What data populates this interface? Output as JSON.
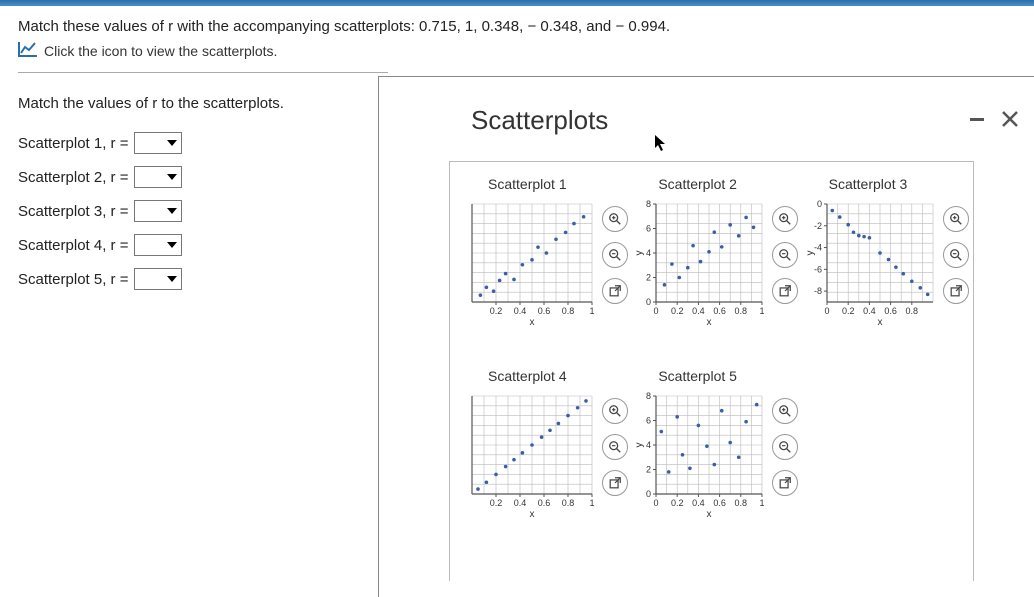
{
  "question": {
    "main_text": "Match these values of r with the accompanying scatterplots: 0.715, 1, 0.348, − 0.348, and − 0.994.",
    "link_text": "Click the icon to view the scatterplots.",
    "instruction": "Match the values of r to the scatterplots."
  },
  "matches": [
    {
      "label": "Scatterplot 1, r ="
    },
    {
      "label": "Scatterplot 2, r ="
    },
    {
      "label": "Scatterplot 3, r ="
    },
    {
      "label": "Scatterplot 4, r ="
    },
    {
      "label": "Scatterplot 5, r ="
    }
  ],
  "popup": {
    "title": "Scatterplots"
  },
  "chart_style": {
    "grid_color": "#b9b9b9",
    "axis_color": "#555555",
    "point_color": "#3b5ea8",
    "tick_font": 9,
    "axis_label_font": 10,
    "background": "#ffffff"
  },
  "plots": [
    {
      "title": "Scatterplot 1",
      "xlabel": "x",
      "ylabel": "",
      "xlim": [
        0,
        1
      ],
      "ylim": [
        0,
        10
      ],
      "xticks": [
        0.2,
        0.4,
        0.6,
        0.8,
        1
      ],
      "xtick_labels": [
        "0.2",
        "0.4",
        "0.6",
        "0.8",
        "1"
      ],
      "yticks": [],
      "ytick_labels": [],
      "points": [
        [
          0.07,
          0.7
        ],
        [
          0.12,
          1.5
        ],
        [
          0.18,
          1.1
        ],
        [
          0.23,
          2.2
        ],
        [
          0.28,
          2.9
        ],
        [
          0.35,
          2.3
        ],
        [
          0.42,
          3.8
        ],
        [
          0.5,
          4.3
        ],
        [
          0.55,
          5.6
        ],
        [
          0.62,
          5.0
        ],
        [
          0.7,
          6.4
        ],
        [
          0.78,
          7.1
        ],
        [
          0.85,
          8.0
        ],
        [
          0.93,
          8.7
        ]
      ]
    },
    {
      "title": "Scatterplot 2",
      "xlabel": "x",
      "ylabel": "y",
      "xlim": [
        0,
        1
      ],
      "ylim": [
        0,
        8
      ],
      "xticks": [
        0,
        0.2,
        0.4,
        0.6,
        0.8,
        1
      ],
      "xtick_labels": [
        "0",
        "0.2",
        "0.4",
        "0.6",
        "0.8",
        "1"
      ],
      "yticks": [
        0,
        2,
        4,
        6,
        8
      ],
      "ytick_labels": [
        "0",
        "2",
        "4",
        "6",
        "8"
      ],
      "points": [
        [
          0.08,
          1.4
        ],
        [
          0.15,
          3.1
        ],
        [
          0.22,
          2.0
        ],
        [
          0.3,
          2.8
        ],
        [
          0.35,
          4.6
        ],
        [
          0.42,
          3.3
        ],
        [
          0.5,
          4.1
        ],
        [
          0.55,
          5.7
        ],
        [
          0.62,
          4.5
        ],
        [
          0.7,
          6.3
        ],
        [
          0.78,
          5.4
        ],
        [
          0.85,
          6.9
        ],
        [
          0.92,
          6.1
        ]
      ]
    },
    {
      "title": "Scatterplot 3",
      "xlabel": "x",
      "ylabel": "y",
      "xlim": [
        0,
        1
      ],
      "ylim": [
        -9,
        0
      ],
      "xticks": [
        0,
        0.2,
        0.4,
        0.6,
        0.8
      ],
      "xtick_labels": [
        "0",
        "0.2",
        "0.4",
        "0.6",
        "0.8"
      ],
      "yticks": [
        -8,
        -6,
        -4,
        -2,
        0
      ],
      "ytick_labels": [
        "-8",
        "-6",
        "-4",
        "-2",
        "0"
      ],
      "points": [
        [
          0.05,
          -0.6
        ],
        [
          0.12,
          -1.2
        ],
        [
          0.2,
          -1.9
        ],
        [
          0.25,
          -2.6
        ],
        [
          0.3,
          -2.9
        ],
        [
          0.35,
          -3.0
        ],
        [
          0.4,
          -3.1
        ],
        [
          0.5,
          -4.5
        ],
        [
          0.58,
          -5.1
        ],
        [
          0.65,
          -5.8
        ],
        [
          0.72,
          -6.4
        ],
        [
          0.8,
          -7.1
        ],
        [
          0.88,
          -7.7
        ],
        [
          0.95,
          -8.3
        ]
      ]
    },
    {
      "title": "Scatterplot 4",
      "xlabel": "x",
      "ylabel": "",
      "xlim": [
        0,
        1
      ],
      "ylim": [
        0,
        10
      ],
      "xticks": [
        0.2,
        0.4,
        0.6,
        0.8,
        1
      ],
      "xtick_labels": [
        "0.2",
        "0.4",
        "0.6",
        "0.8",
        "1"
      ],
      "yticks": [],
      "ytick_labels": [],
      "points": [
        [
          0.05,
          0.5
        ],
        [
          0.12,
          1.2
        ],
        [
          0.2,
          2.0
        ],
        [
          0.28,
          2.8
        ],
        [
          0.35,
          3.5
        ],
        [
          0.42,
          4.2
        ],
        [
          0.5,
          5.0
        ],
        [
          0.58,
          5.8
        ],
        [
          0.65,
          6.5
        ],
        [
          0.72,
          7.2
        ],
        [
          0.8,
          8.0
        ],
        [
          0.88,
          8.8
        ],
        [
          0.95,
          9.5
        ]
      ]
    },
    {
      "title": "Scatterplot 5",
      "xlabel": "x",
      "ylabel": "y",
      "xlim": [
        0,
        1
      ],
      "ylim": [
        0,
        8
      ],
      "xticks": [
        0,
        0.2,
        0.4,
        0.6,
        0.8,
        1
      ],
      "xtick_labels": [
        "0",
        "0.2",
        "0.4",
        "0.6",
        "0.8",
        "1"
      ],
      "yticks": [
        0,
        2,
        4,
        6,
        8
      ],
      "ytick_labels": [
        "0",
        "2",
        "4",
        "6",
        "8"
      ],
      "points": [
        [
          0.05,
          5.1
        ],
        [
          0.12,
          1.8
        ],
        [
          0.2,
          6.3
        ],
        [
          0.25,
          3.2
        ],
        [
          0.32,
          2.1
        ],
        [
          0.4,
          5.6
        ],
        [
          0.48,
          3.9
        ],
        [
          0.55,
          2.4
        ],
        [
          0.62,
          6.8
        ],
        [
          0.7,
          4.2
        ],
        [
          0.78,
          3.0
        ],
        [
          0.85,
          5.9
        ],
        [
          0.95,
          7.3
        ]
      ]
    }
  ]
}
